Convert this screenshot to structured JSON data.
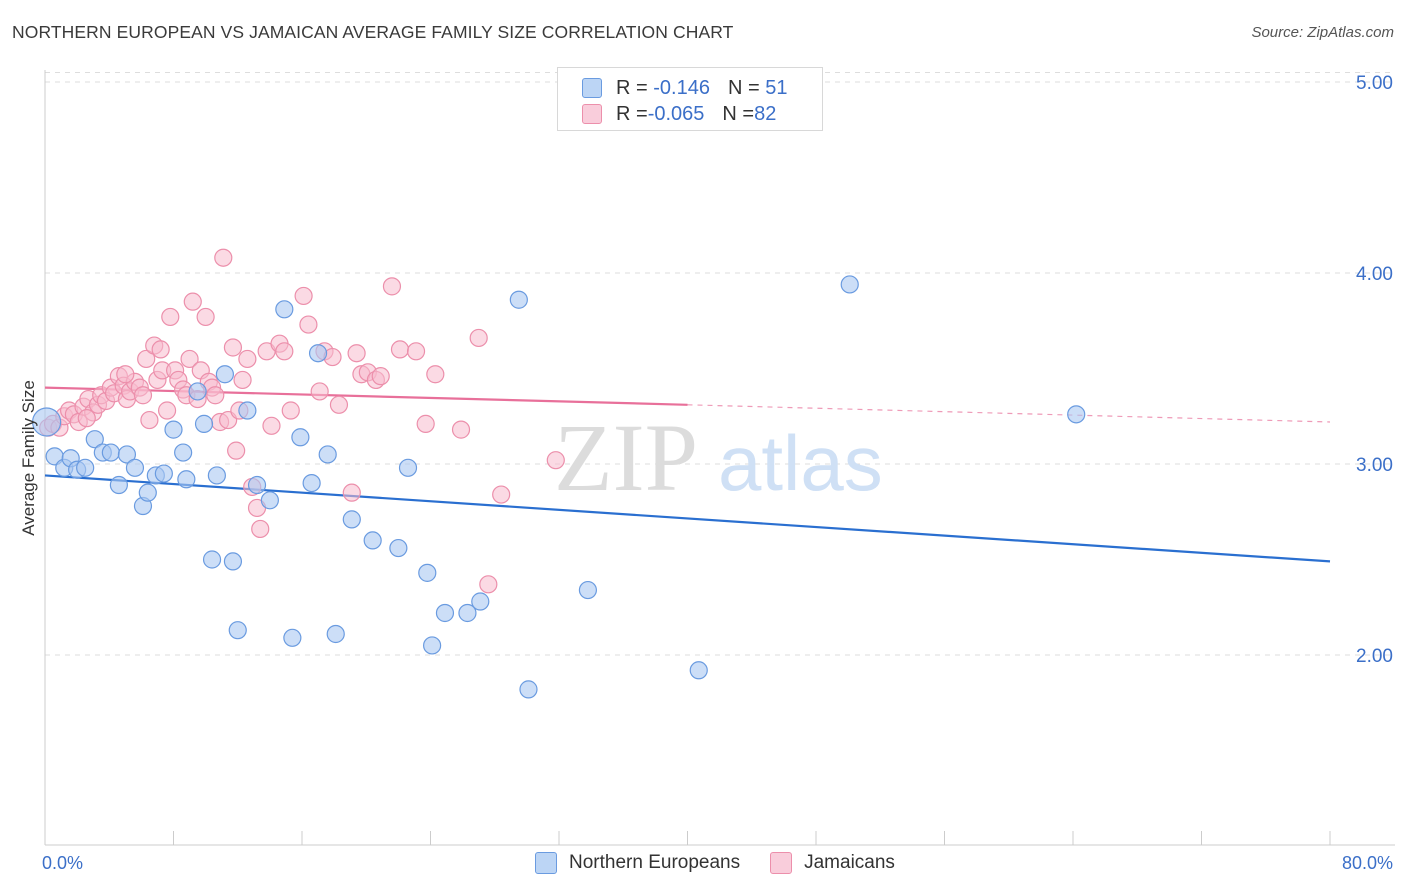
{
  "header": {
    "title": "NORTHERN EUROPEAN VS JAMAICAN AVERAGE FAMILY SIZE CORRELATION CHART",
    "source": "Source: ZipAtlas.com"
  },
  "watermark": {
    "zip": "ZIP",
    "atlas": "atlas"
  },
  "legend": {
    "rows": [
      {
        "r_label": "R = ",
        "r_value": "-0.146",
        "n_label": "N = ",
        "n_value": "51"
      },
      {
        "r_label": "R = ",
        "r_value": "-0.065",
        "n_label": "N = ",
        "n_value": "82"
      }
    ]
  },
  "bottom_legend": {
    "series1": "Northern Europeans",
    "series2": "Jamaicans"
  },
  "colors": {
    "blue_fill": "#aac8f2",
    "blue_stroke": "#6a9be0",
    "blue_line": "#2a6fd0",
    "pink_fill": "#f7bccd",
    "pink_stroke": "#ec8fab",
    "pink_line": "#e8709a",
    "tick_text": "#3b6fc8",
    "grid": "#dddddd"
  },
  "chart_data": {
    "type": "scatter",
    "title": "NORTHERN EUROPEAN VS JAMAICAN AVERAGE FAMILY SIZE CORRELATION CHART",
    "xlabel": "",
    "ylabel": "Average Family Size",
    "xlim": [
      0,
      80
    ],
    "ylim": [
      1.0,
      5.15
    ],
    "x_tick_labels": [
      "0.0%",
      "80.0%"
    ],
    "y_ticks": [
      2.0,
      3.0,
      4.0,
      5.0
    ],
    "y_tick_labels": [
      "2.00",
      "3.00",
      "4.00",
      "5.00"
    ],
    "grid": "horizontal dashed",
    "legend_position": "top-center",
    "series": [
      {
        "name": "Northern Europeans",
        "r": -0.146,
        "n": 51,
        "trend": {
          "x": [
            0,
            80
          ],
          "y": [
            2.94,
            2.49
          ],
          "dashed_from": null
        },
        "points": [
          [
            0.1,
            3.22
          ],
          [
            0.6,
            3.04
          ],
          [
            1.2,
            2.98
          ],
          [
            1.6,
            3.03
          ],
          [
            2.0,
            2.97
          ],
          [
            2.5,
            2.98
          ],
          [
            3.1,
            3.13
          ],
          [
            3.6,
            3.06
          ],
          [
            4.1,
            3.06
          ],
          [
            4.6,
            2.89
          ],
          [
            5.1,
            3.05
          ],
          [
            5.6,
            2.98
          ],
          [
            6.1,
            2.78
          ],
          [
            6.4,
            2.85
          ],
          [
            6.9,
            2.94
          ],
          [
            7.4,
            2.95
          ],
          [
            8.0,
            3.18
          ],
          [
            8.6,
            3.06
          ],
          [
            8.8,
            2.92
          ],
          [
            9.5,
            3.38
          ],
          [
            9.9,
            3.21
          ],
          [
            10.4,
            2.5
          ],
          [
            10.7,
            2.94
          ],
          [
            11.2,
            3.47
          ],
          [
            11.7,
            2.49
          ],
          [
            12.0,
            2.13
          ],
          [
            12.6,
            3.28
          ],
          [
            13.2,
            2.89
          ],
          [
            14.0,
            2.81
          ],
          [
            14.9,
            3.81
          ],
          [
            15.4,
            2.09
          ],
          [
            15.9,
            3.14
          ],
          [
            16.6,
            2.9
          ],
          [
            17.0,
            3.58
          ],
          [
            17.6,
            3.05
          ],
          [
            18.1,
            2.11
          ],
          [
            19.1,
            2.71
          ],
          [
            20.4,
            2.6
          ],
          [
            22.0,
            2.56
          ],
          [
            22.6,
            2.98
          ],
          [
            23.8,
            2.43
          ],
          [
            24.1,
            2.05
          ],
          [
            24.9,
            2.22
          ],
          [
            26.3,
            2.22
          ],
          [
            27.1,
            2.28
          ],
          [
            29.5,
            3.86
          ],
          [
            30.1,
            1.82
          ],
          [
            33.8,
            2.34
          ],
          [
            40.7,
            1.92
          ],
          [
            50.1,
            3.94
          ],
          [
            64.2,
            3.26
          ]
        ]
      },
      {
        "name": "Jamaicans",
        "r": -0.065,
        "n": 82,
        "trend": {
          "x": [
            0,
            80
          ],
          "y": [
            3.4,
            3.22
          ],
          "dashed_from": 40
        },
        "points": [
          [
            0.2,
            3.19
          ],
          [
            0.5,
            3.21
          ],
          [
            0.9,
            3.19
          ],
          [
            1.2,
            3.25
          ],
          [
            1.5,
            3.28
          ],
          [
            1.8,
            3.26
          ],
          [
            2.1,
            3.22
          ],
          [
            2.4,
            3.3
          ],
          [
            2.7,
            3.34
          ],
          [
            3.0,
            3.27
          ],
          [
            3.3,
            3.31
          ],
          [
            3.5,
            3.36
          ],
          [
            3.8,
            3.33
          ],
          [
            4.1,
            3.4
          ],
          [
            4.3,
            3.37
          ],
          [
            4.6,
            3.46
          ],
          [
            4.9,
            3.41
          ],
          [
            5.1,
            3.34
          ],
          [
            5.3,
            3.38
          ],
          [
            5.6,
            3.43
          ],
          [
            5.9,
            3.4
          ],
          [
            6.1,
            3.36
          ],
          [
            6.3,
            3.55
          ],
          [
            6.5,
            3.23
          ],
          [
            6.8,
            3.62
          ],
          [
            7.0,
            3.44
          ],
          [
            7.3,
            3.49
          ],
          [
            7.6,
            3.28
          ],
          [
            7.8,
            3.77
          ],
          [
            8.1,
            3.49
          ],
          [
            8.3,
            3.44
          ],
          [
            8.6,
            3.39
          ],
          [
            8.8,
            3.36
          ],
          [
            9.0,
            3.55
          ],
          [
            9.2,
            3.85
          ],
          [
            9.5,
            3.34
          ],
          [
            9.7,
            3.49
          ],
          [
            10.0,
            3.77
          ],
          [
            10.2,
            3.43
          ],
          [
            10.4,
            3.4
          ],
          [
            10.6,
            3.36
          ],
          [
            10.9,
            3.22
          ],
          [
            11.1,
            4.08
          ],
          [
            11.4,
            3.23
          ],
          [
            11.7,
            3.61
          ],
          [
            11.9,
            3.07
          ],
          [
            12.1,
            3.28
          ],
          [
            12.3,
            3.44
          ],
          [
            12.6,
            3.55
          ],
          [
            12.9,
            2.88
          ],
          [
            13.2,
            2.77
          ],
          [
            13.4,
            2.66
          ],
          [
            13.8,
            3.59
          ],
          [
            14.1,
            3.2
          ],
          [
            14.6,
            3.63
          ],
          [
            14.9,
            3.59
          ],
          [
            15.3,
            3.28
          ],
          [
            16.1,
            3.88
          ],
          [
            16.4,
            3.73
          ],
          [
            17.1,
            3.38
          ],
          [
            17.4,
            3.59
          ],
          [
            17.9,
            3.56
          ],
          [
            18.3,
            3.31
          ],
          [
            19.1,
            2.85
          ],
          [
            19.4,
            3.58
          ],
          [
            19.7,
            3.47
          ],
          [
            20.1,
            3.48
          ],
          [
            20.6,
            3.44
          ],
          [
            20.9,
            3.46
          ],
          [
            21.6,
            3.93
          ],
          [
            22.1,
            3.6
          ],
          [
            23.1,
            3.59
          ],
          [
            23.7,
            3.21
          ],
          [
            24.3,
            3.47
          ],
          [
            25.9,
            3.18
          ],
          [
            27.0,
            3.66
          ],
          [
            27.6,
            2.37
          ],
          [
            28.4,
            2.84
          ],
          [
            31.8,
            3.02
          ],
          [
            7.2,
            3.6
          ],
          [
            2.6,
            3.24
          ],
          [
            5.0,
            3.47
          ]
        ]
      }
    ]
  }
}
